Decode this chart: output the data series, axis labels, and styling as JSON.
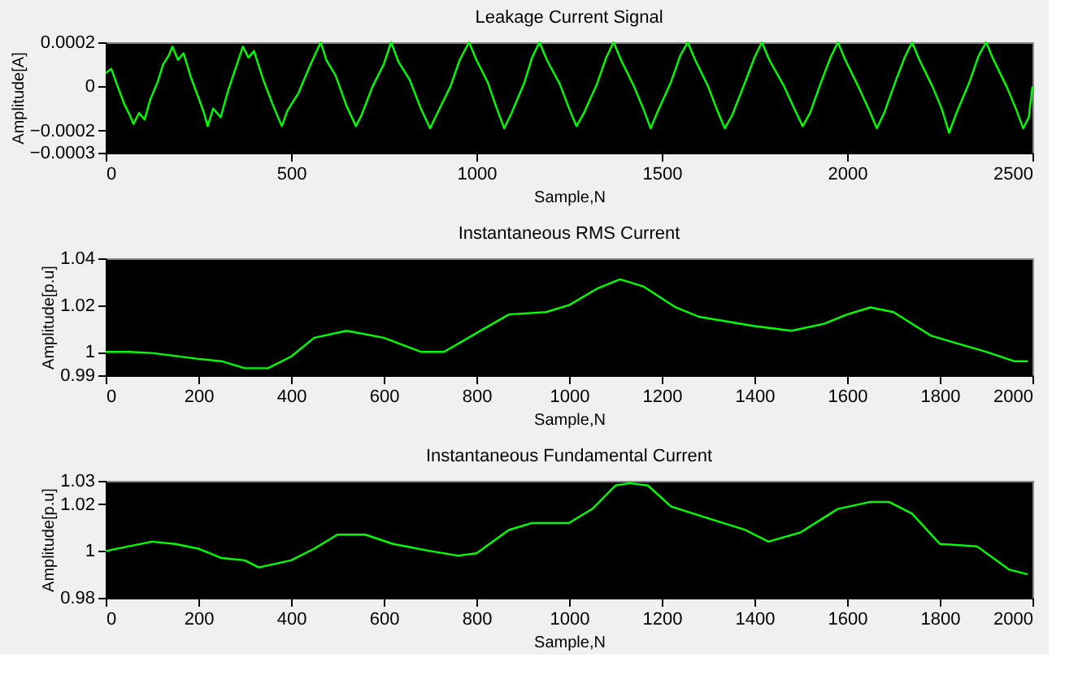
{
  "chart_data": [
    {
      "type": "line",
      "title": "Leakage Current Signal",
      "xlabel": "Sample,N",
      "ylabel": "Amplitude[A]",
      "xlim": [
        0,
        2500
      ],
      "xticks": [
        0,
        500,
        1000,
        1500,
        2000,
        2500
      ],
      "ylim": [
        -0.0003,
        0.0002
      ],
      "yticks": [
        -0.0003,
        -0.0002,
        0,
        0.0002
      ],
      "grid": false,
      "series": [
        {
          "color": "#00ff00",
          "x": [
            0,
            15,
            30,
            50,
            65,
            75,
            90,
            105,
            120,
            140,
            155,
            170,
            180,
            195,
            210,
            230,
            250,
            265,
            275,
            290,
            310,
            330,
            350,
            370,
            385,
            400,
            425,
            450,
            475,
            490,
            520,
            550,
            580,
            595,
            620,
            650,
            675,
            690,
            720,
            750,
            770,
            790,
            820,
            850,
            875,
            895,
            930,
            955,
            980,
            1000,
            1030,
            1055,
            1075,
            1095,
            1130,
            1150,
            1170,
            1190,
            1225,
            1250,
            1270,
            1290,
            1325,
            1350,
            1370,
            1390,
            1425,
            1450,
            1470,
            1490,
            1525,
            1550,
            1570,
            1590,
            1625,
            1650,
            1670,
            1690,
            1725,
            1750,
            1770,
            1790,
            1830,
            1860,
            1880,
            1900,
            1930,
            1955,
            1975,
            1995,
            2030,
            2060,
            2080,
            2100,
            2130,
            2155,
            2175,
            2195,
            2230,
            2255,
            2275,
            2295,
            2330,
            2355,
            2375,
            2395,
            2430,
            2455,
            2475,
            2490,
            2500
          ],
          "values": [
            6e-05,
            8e-05,
            1e-05,
            -8e-05,
            -0.00013,
            -0.00017,
            -0.00012,
            -0.00015,
            -6e-05,
            2e-05,
            0.0001,
            0.00014,
            0.00018,
            0.00012,
            0.00015,
            4e-05,
            -5e-05,
            -0.00012,
            -0.00018,
            -0.0001,
            -0.00014,
            -2e-05,
            8e-05,
            0.00018,
            0.00013,
            0.00016,
            3e-05,
            -8e-05,
            -0.00018,
            -0.00011,
            -3e-05,
            9e-05,
            0.0002,
            0.00012,
            5e-05,
            -9e-05,
            -0.00018,
            -0.00013,
            0.0,
            0.0001,
            0.0002,
            0.00011,
            3e-05,
            -0.0001,
            -0.00019,
            -0.00012,
            0.0,
            0.00012,
            0.0002,
            0.00012,
            2e-05,
            -0.0001,
            -0.00019,
            -0.00012,
            2e-05,
            0.00013,
            0.0002,
            0.00012,
            1e-05,
            -0.0001,
            -0.00018,
            -0.00012,
            1e-05,
            0.00013,
            0.0002,
            0.00012,
            0.0,
            -0.0001,
            -0.00019,
            -0.00011,
            2e-05,
            0.00014,
            0.0002,
            0.00012,
            0.0,
            -0.00011,
            -0.00019,
            -0.00013,
            2e-05,
            0.00013,
            0.0002,
            0.00012,
            0.0,
            -0.00011,
            -0.00018,
            -0.00012,
            2e-05,
            0.00013,
            0.0002,
            0.00012,
            0.0,
            -0.00011,
            -0.00019,
            -0.00012,
            2e-05,
            0.00013,
            0.0002,
            0.00012,
            0.0,
            -0.0001,
            -0.00021,
            -0.00012,
            2e-05,
            0.00014,
            0.0002,
            0.00012,
            0.0,
            -0.0001,
            -0.00019,
            -0.00014,
            0.0
          ]
        }
      ]
    },
    {
      "type": "line",
      "title": "Instantaneous RMS Current",
      "xlabel": "Sample,N",
      "ylabel": "Amplitude[p.u]",
      "xlim": [
        0,
        2000
      ],
      "xticks": [
        0,
        200,
        400,
        600,
        800,
        1000,
        1200,
        1400,
        1600,
        1800,
        2000
      ],
      "ylim": [
        0.99,
        1.04
      ],
      "yticks": [
        0.99,
        1,
        1.02,
        1.04
      ],
      "grid": false,
      "series": [
        {
          "color": "#00ff00",
          "x": [
            0,
            50,
            100,
            200,
            250,
            300,
            350,
            400,
            450,
            520,
            600,
            680,
            730,
            800,
            870,
            950,
            1000,
            1060,
            1110,
            1160,
            1230,
            1280,
            1400,
            1480,
            1550,
            1600,
            1650,
            1700,
            1780,
            1830,
            1900,
            1960,
            1990
          ],
          "values": [
            1.0,
            1.0,
            0.9995,
            0.997,
            0.996,
            0.993,
            0.993,
            0.998,
            1.006,
            1.009,
            1.006,
            1.0,
            1.0,
            1.008,
            1.016,
            1.017,
            1.02,
            1.027,
            1.031,
            1.028,
            1.019,
            1.015,
            1.011,
            1.009,
            1.012,
            1.016,
            1.019,
            1.017,
            1.007,
            1.004,
            1.0,
            0.996,
            0.996
          ]
        }
      ]
    },
    {
      "type": "line",
      "title": "Instantaneous Fundamental Current",
      "xlabel": "Sample,N",
      "ylabel": "Amplitude[p.u]",
      "xlim": [
        0,
        2000
      ],
      "xticks": [
        0,
        200,
        400,
        600,
        800,
        1000,
        1200,
        1400,
        1600,
        1800,
        2000
      ],
      "ylim": [
        0.98,
        1.03
      ],
      "yticks": [
        0.98,
        1,
        1.02,
        1.03
      ],
      "grid": false,
      "series": [
        {
          "color": "#00ff00",
          "x": [
            0,
            50,
            100,
            150,
            200,
            250,
            300,
            330,
            400,
            450,
            500,
            560,
            620,
            700,
            760,
            800,
            870,
            920,
            1000,
            1050,
            1100,
            1130,
            1170,
            1220,
            1300,
            1380,
            1430,
            1500,
            1580,
            1650,
            1690,
            1740,
            1800,
            1880,
            1950,
            1990
          ],
          "values": [
            1.0,
            1.002,
            1.004,
            1.003,
            1.001,
            0.997,
            0.996,
            0.993,
            0.996,
            1.001,
            1.007,
            1.007,
            1.003,
            1.0,
            0.998,
            0.999,
            1.009,
            1.012,
            1.012,
            1.018,
            1.028,
            1.029,
            1.028,
            1.019,
            1.014,
            1.009,
            1.004,
            1.008,
            1.018,
            1.021,
            1.021,
            1.016,
            1.003,
            1.002,
            0.992,
            0.99
          ]
        }
      ]
    }
  ]
}
